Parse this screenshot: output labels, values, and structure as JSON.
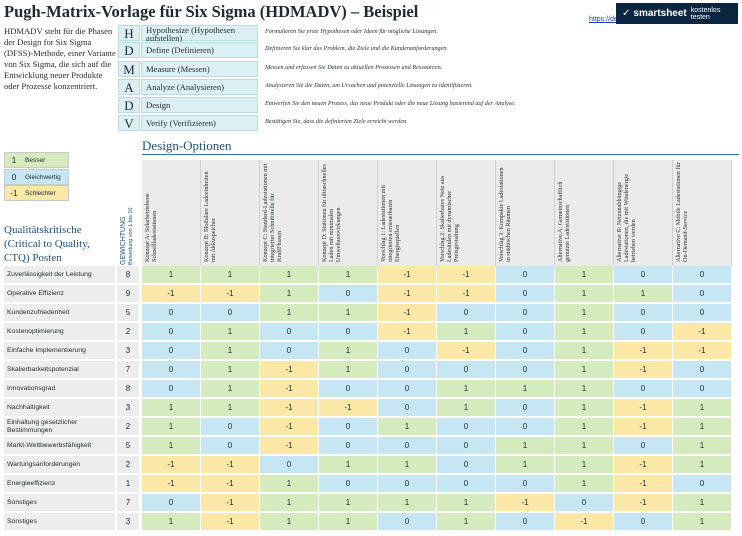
{
  "title": "Pugh-Matrix-Vorlage für Six Sigma (HDMADV) – Beispiel",
  "link_text": "https://de",
  "brand": {
    "name": "smartsheet",
    "cta": "kostenlos testen"
  },
  "intro": "HDMADV steht für die Phasen der Design for Six Sigma (DFSS)-Methode, einer Variante von Six Sigma, die sich auf die Entwicklung neuer Produkte oder Prozesse konzentriert.",
  "dmadv": [
    {
      "letter": "H",
      "name": "Hypothesize (Hypothesen aufstellen)",
      "desc": "Formulieren Sie erste Hypothesen oder Ideen für mögliche Lösungen."
    },
    {
      "letter": "D",
      "name": "Define (Definieren)",
      "desc": "Definieren Sie klar das Problem, die Ziele und die Kundenanforderungen."
    },
    {
      "letter": "M",
      "name": "Measure (Messen)",
      "desc": "Messen und erfassen Sie Daten zu aktuellen Prozessen und Ressourcen."
    },
    {
      "letter": "A",
      "name": "Analyze (Analysieren)",
      "desc": "Analysieren Sie die Daten, um Ursachen und potenzielle Lösungen zu identifizieren."
    },
    {
      "letter": "D",
      "name": "Design",
      "desc": "Entwerfen Sie den neuen Prozess, das neue Produkt oder die neue Lösung basierend auf der Analyse."
    },
    {
      "letter": "V",
      "name": "Verify (Verifizieren)",
      "desc": "Bestätigen Sie, dass die definierten Ziele erreicht werden."
    }
  ],
  "legend": [
    {
      "value": "1",
      "label": "Besser",
      "kind": "pos"
    },
    {
      "value": "0",
      "label": "Gleichwertig",
      "kind": "zero"
    },
    {
      "value": "-1",
      "label": "Schlechter",
      "kind": "neg"
    }
  ],
  "design_options_title": "Design-Optionen",
  "ctq_title": "Qualitätskritische (Critical to Quality, CTQ) Posten",
  "weight_header": "GEWICHTUNG",
  "weight_sub": "Bewertung von 1 bis 10",
  "options": [
    "Konzept A: Solarbetriebene Schnellladestationen",
    "Konzept B: Modulare Ladeeinheiten mit Akkuspeicher",
    "Konzept C: Standard-Ladestationen mit integrierter Schnittstelle für KraftFhusen",
    "Konzept D: Stationen für ultraschnelles Laden mit minimalen Umweltauswirkungen",
    "Vorschlag 1: Ladestationen mit integrierten erneuerbaren Energiequellen",
    "Vorschlag 2: Skalierbares Netz aus Ladesäulen mit dynamischer Preisgestaltung",
    "Vorschlag 3: Kompakte Ladestationen in städtischen Räumen",
    "Alternative A: Gemeinschaftlich genutzte Ladestationen",
    "Alternative B: Netzunabhängige Ladestationen, die mit Windenergie betrieben werden",
    "Alternative C: Mobile Ladestationen für On-Demand-Service"
  ],
  "rows": [
    {
      "label": "Zuverlässigkeit der Leistung",
      "weight": "8",
      "scores": [
        "1",
        "1",
        "1",
        "1",
        "-1",
        "-1",
        "0",
        "1",
        "0",
        "0"
      ]
    },
    {
      "label": "Operative Effizienz",
      "weight": "9",
      "scores": [
        "-1",
        "-1",
        "1",
        "0",
        "-1",
        "-1",
        "0",
        "1",
        "1",
        "0"
      ]
    },
    {
      "label": "Kundenzufriedenheit",
      "weight": "5",
      "scores": [
        "0",
        "0",
        "1",
        "1",
        "-1",
        "0",
        "0",
        "1",
        "0",
        "0"
      ]
    },
    {
      "label": "Kostenoptimierung",
      "weight": "2",
      "scores": [
        "0",
        "1",
        "0",
        "0",
        "-1",
        "1",
        "0",
        "1",
        "0",
        "-1"
      ]
    },
    {
      "label": "Einfache Implementierung",
      "weight": "3",
      "scores": [
        "0",
        "1",
        "0",
        "1",
        "0",
        "-1",
        "0",
        "1",
        "-1",
        "-1"
      ]
    },
    {
      "label": "Skalierbarkeitspotenzial",
      "weight": "7",
      "scores": [
        "0",
        "1",
        "-1",
        "1",
        "0",
        "0",
        "0",
        "1",
        "-1",
        "0"
      ]
    },
    {
      "label": "Innovationsgrad",
      "weight": "8",
      "scores": [
        "0",
        "1",
        "-1",
        "0",
        "0",
        "1",
        "1",
        "1",
        "0",
        "0"
      ]
    },
    {
      "label": "Nachhaltigkeit",
      "weight": "3",
      "scores": [
        "1",
        "1",
        "-1",
        "-1",
        "0",
        "1",
        "0",
        "1",
        "-1",
        "1"
      ]
    },
    {
      "label": "Einhaltung gesetzlicher Bestimmungen",
      "weight": "2",
      "scores": [
        "1",
        "0",
        "-1",
        "0",
        "1",
        "0",
        "0",
        "1",
        "-1",
        "1"
      ]
    },
    {
      "label": "Markt-Wettbewerbsfähigkeit",
      "weight": "5",
      "scores": [
        "1",
        "0",
        "-1",
        "0",
        "0",
        "0",
        "1",
        "1",
        "0",
        "1"
      ]
    },
    {
      "label": "Wartungsanforderungen",
      "weight": "2",
      "scores": [
        "-1",
        "-1",
        "0",
        "1",
        "1",
        "0",
        "1",
        "1",
        "-1",
        "1"
      ]
    },
    {
      "label": "Energieeffizienz",
      "weight": "1",
      "scores": [
        "-1",
        "-1",
        "1",
        "0",
        "0",
        "0",
        "0",
        "1",
        "-1",
        "0"
      ]
    },
    {
      "label": "Sonstiges",
      "weight": "7",
      "scores": [
        "0",
        "-1",
        "1",
        "1",
        "1",
        "1",
        "-1",
        "0",
        "-1",
        "1"
      ]
    },
    {
      "label": "Sonstiges",
      "weight": "3",
      "scores": [
        "1",
        "-1",
        "1",
        "1",
        "0",
        "1",
        "0",
        "-1",
        "0",
        "1"
      ]
    }
  ],
  "colors": {
    "better": "#d4ecbd",
    "equal": "#c7e6f3",
    "worse": "#fbe7a6",
    "accent": "#1f4e79"
  }
}
